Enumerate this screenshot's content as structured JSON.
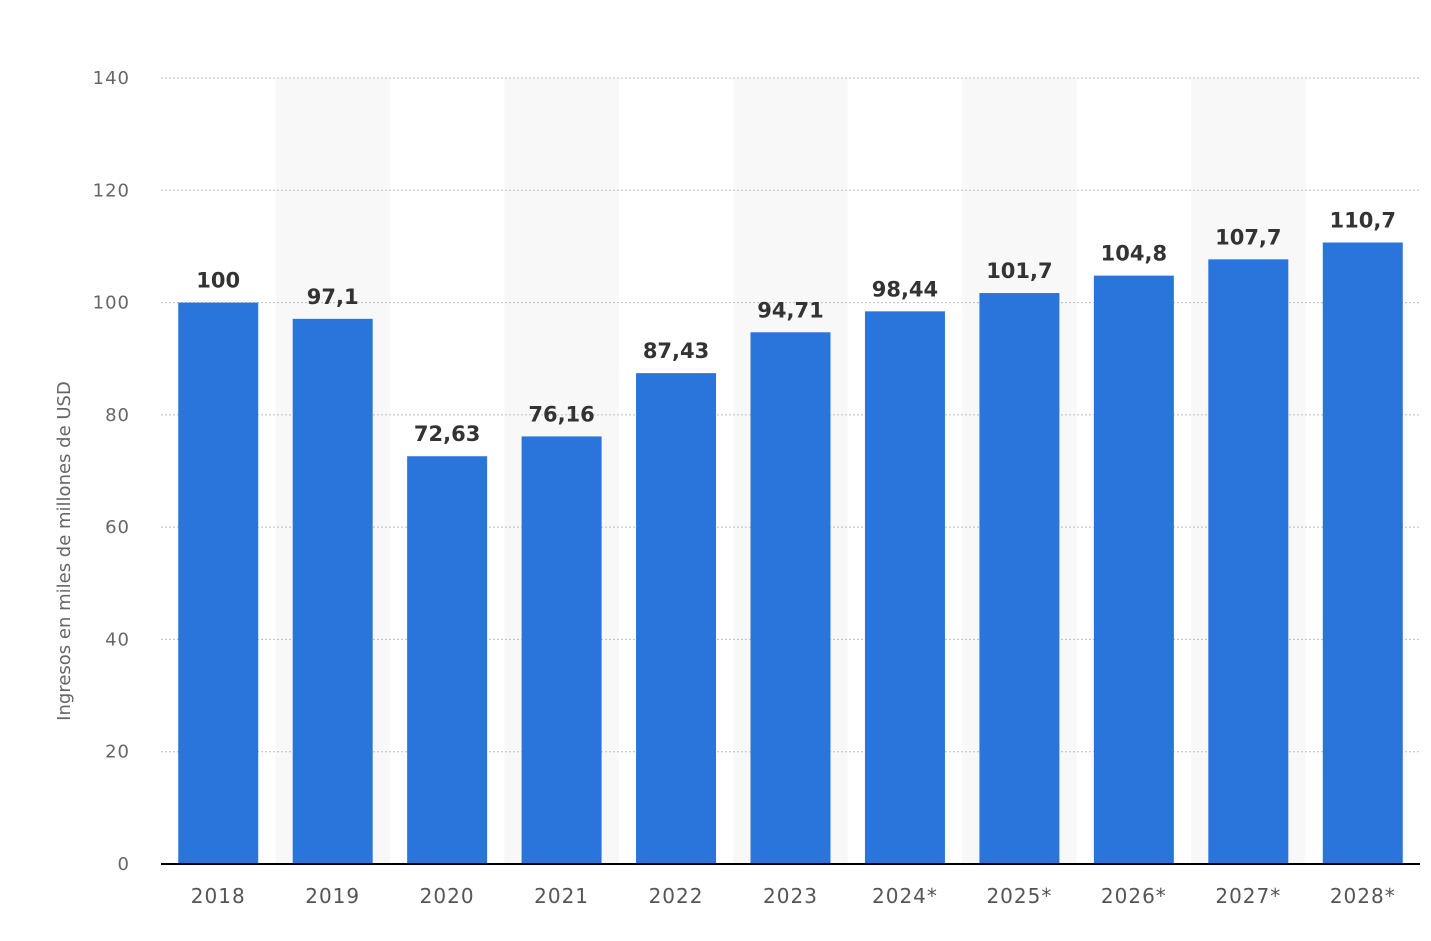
{
  "chart_data": {
    "type": "bar",
    "categories": [
      "2018",
      "2019",
      "2020",
      "2021",
      "2022",
      "2023",
      "2024*",
      "2025*",
      "2026*",
      "2027*",
      "2028*"
    ],
    "values": [
      100,
      97.1,
      72.63,
      76.16,
      87.43,
      94.71,
      98.44,
      101.7,
      104.8,
      107.7,
      110.7
    ],
    "value_labels": [
      "100",
      "97,1",
      "72,63",
      "76,16",
      "87,43",
      "94,71",
      "98,44",
      "101,7",
      "104,8",
      "107,7",
      "110,7"
    ],
    "ylabel": "Ingresos en miles de millones de USD",
    "xlabel": "",
    "ylim": [
      0,
      140
    ],
    "yticks": [
      0,
      20,
      40,
      60,
      80,
      100,
      120,
      140
    ],
    "grid": true,
    "bar_color": "#2a75dc",
    "alt_band_color": "#f8f8f9"
  }
}
